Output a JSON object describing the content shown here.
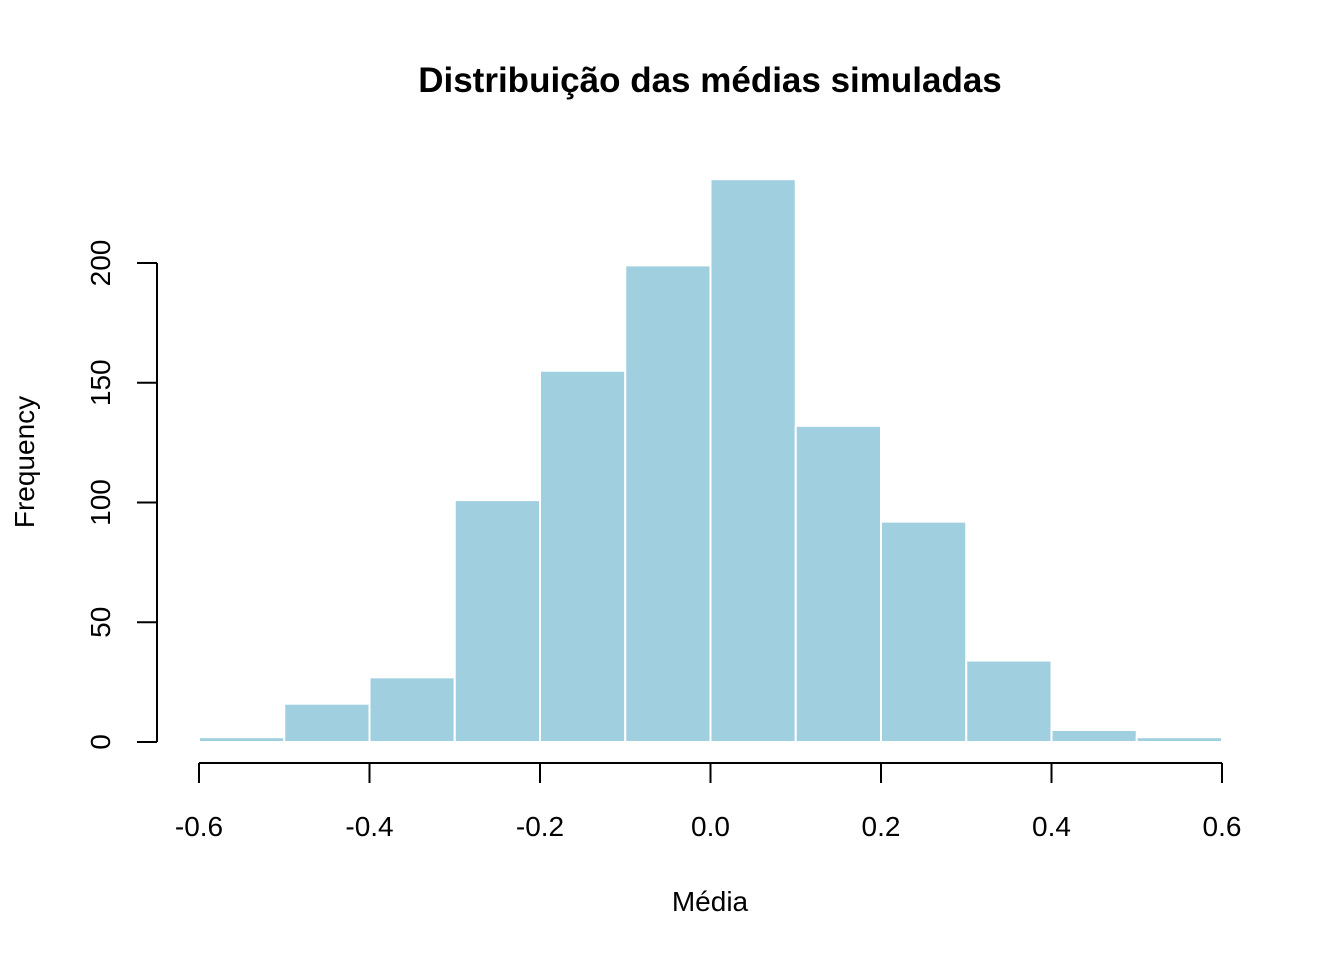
{
  "chart_data": {
    "type": "bar",
    "title": "Distribuição das médias simuladas",
    "xlabel": "Média",
    "ylabel": "Frequency",
    "bin_edges": [
      -0.6,
      -0.5,
      -0.4,
      -0.3,
      -0.2,
      -0.1,
      0.0,
      0.1,
      0.2,
      0.3,
      0.4,
      0.5,
      0.6
    ],
    "values": [
      2,
      16,
      27,
      101,
      155,
      199,
      235,
      132,
      92,
      34,
      5,
      2
    ],
    "xlim": [
      -0.6,
      0.6
    ],
    "ylim": [
      0,
      235
    ],
    "x_ticks": [
      -0.6,
      -0.4,
      -0.2,
      0.0,
      0.2,
      0.4,
      0.6
    ],
    "x_tick_labels": [
      "-0.6",
      "-0.4",
      "-0.2",
      "0.0",
      "0.2",
      "0.4",
      "0.6"
    ],
    "y_ticks": [
      0,
      50,
      100,
      150,
      200
    ],
    "y_tick_labels": [
      "0",
      "50",
      "100",
      "150",
      "200"
    ],
    "bar_color": "#a0cfe0",
    "bar_border_color": "#ffffff",
    "grid": false,
    "legend": "none"
  }
}
